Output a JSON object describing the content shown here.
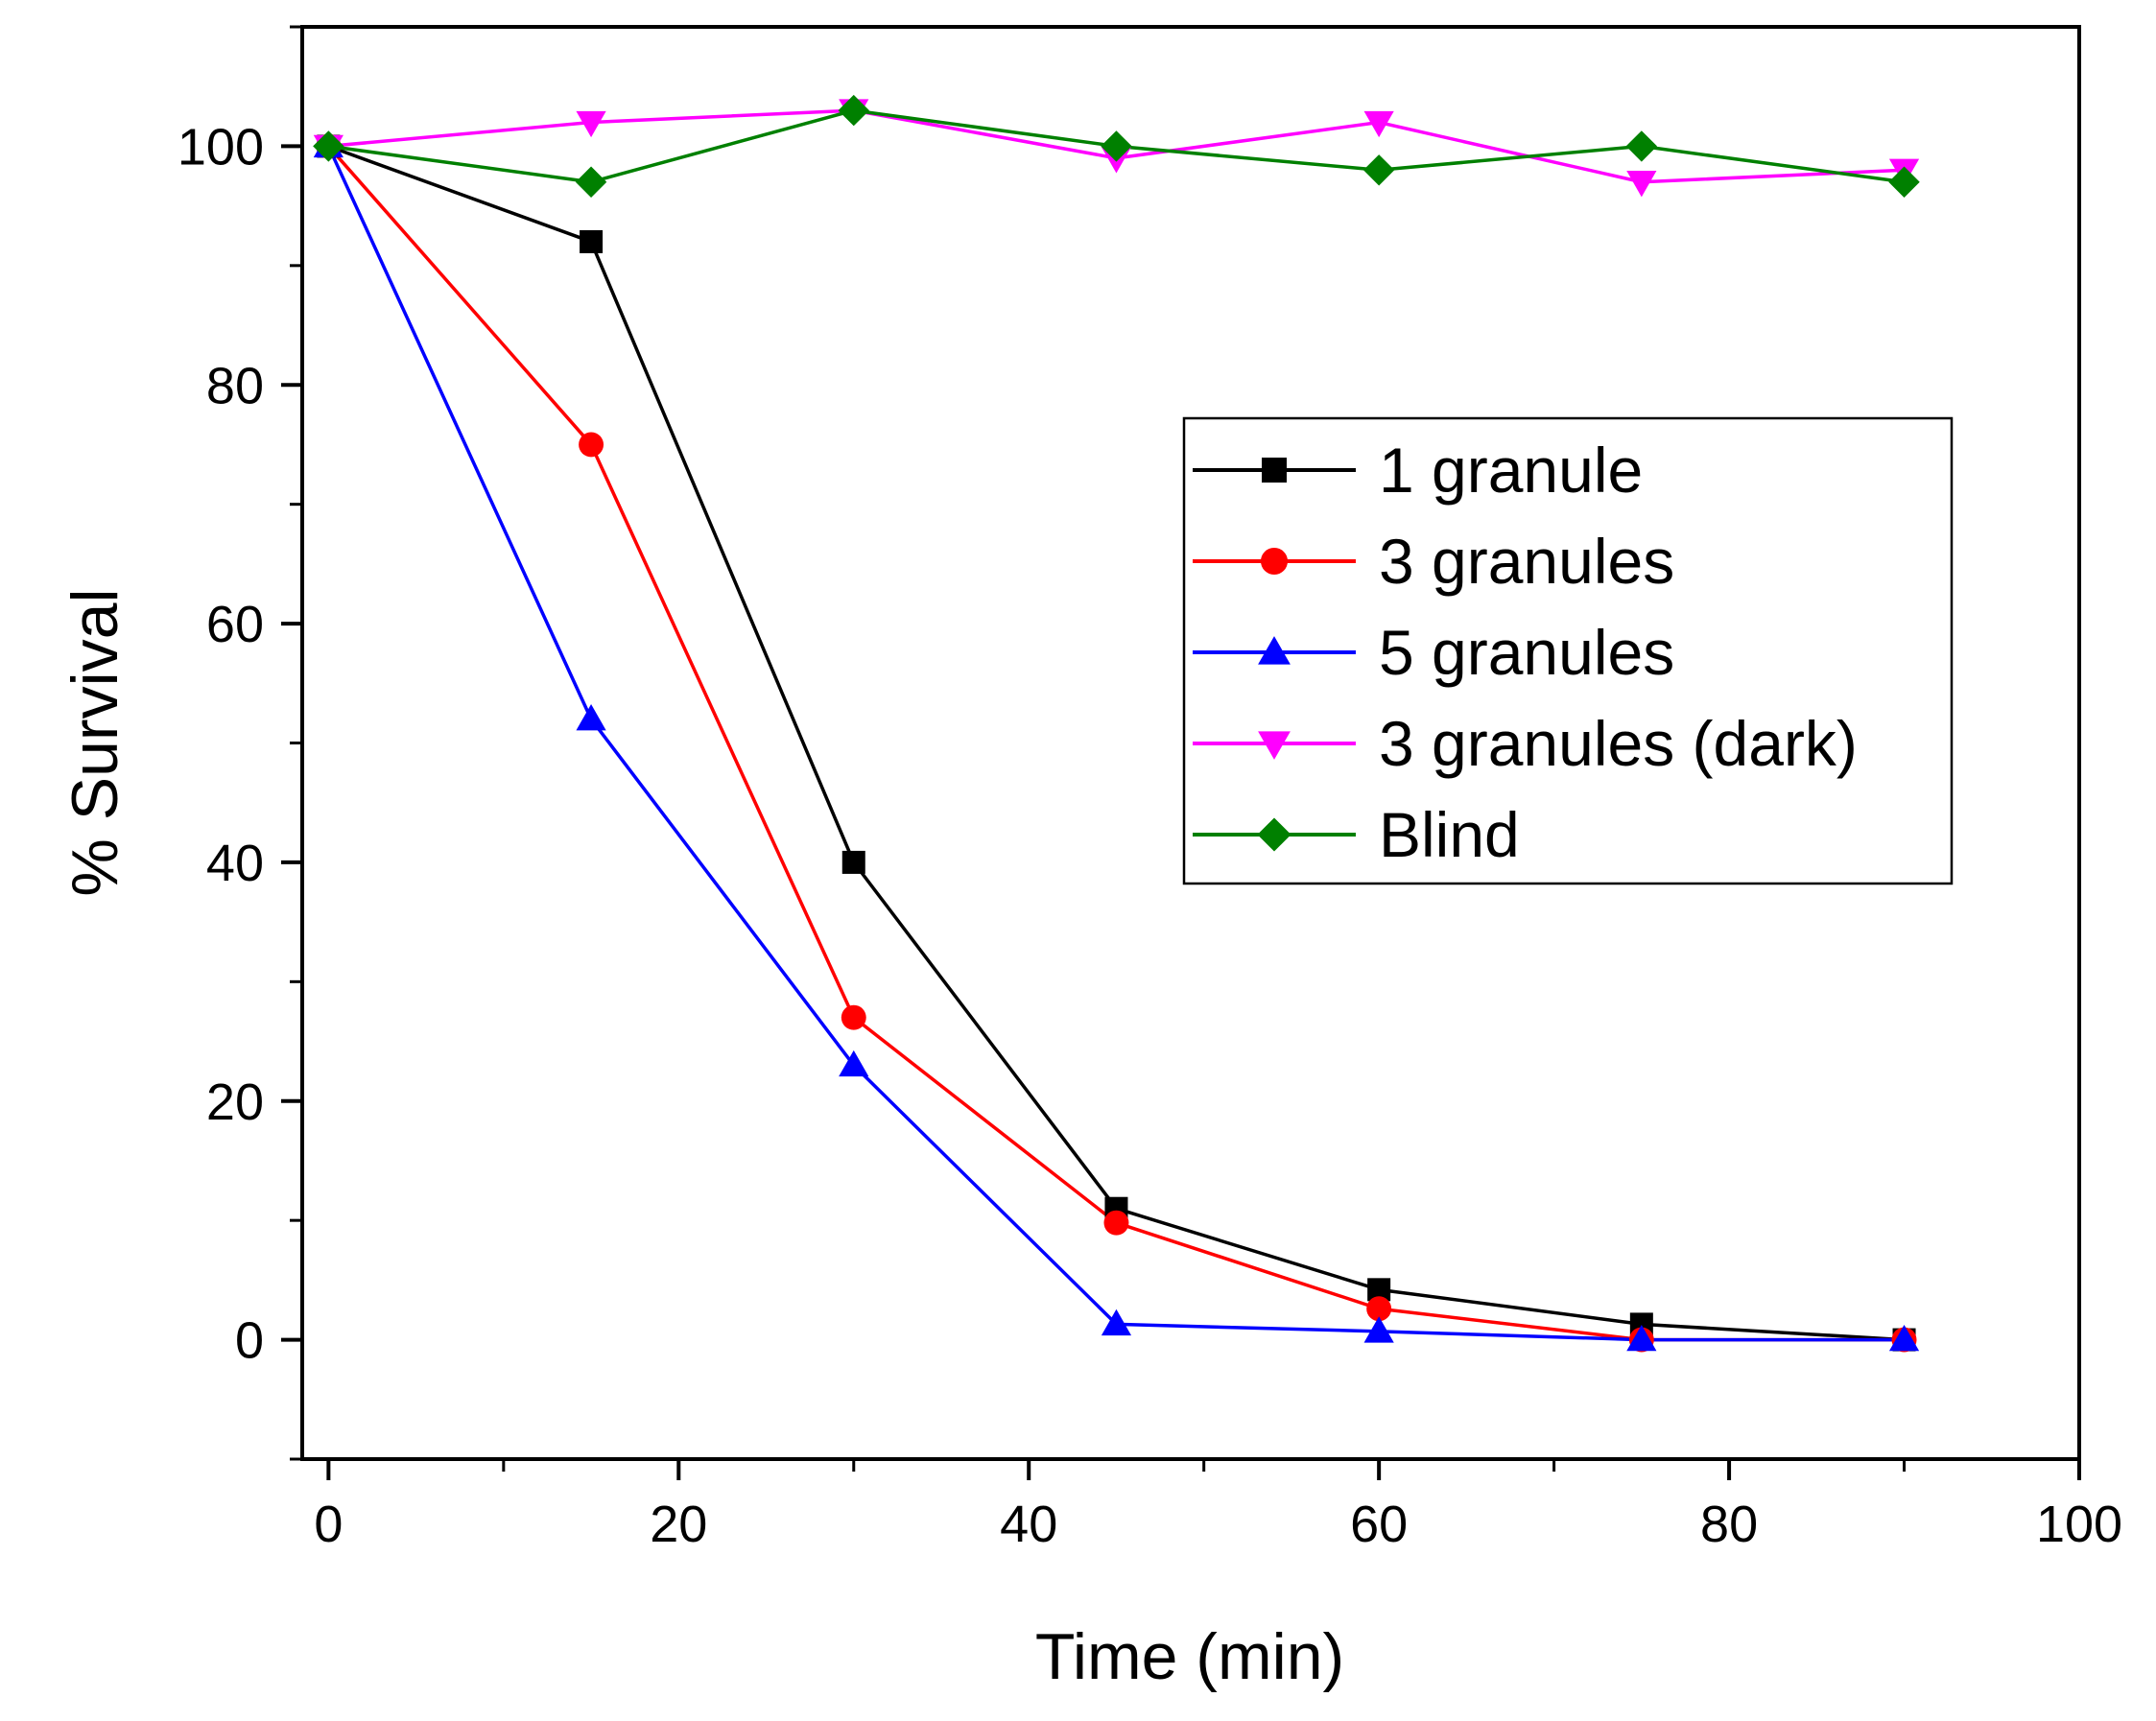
{
  "chart_data": {
    "type": "line",
    "title": "",
    "xlabel": "Time (min)",
    "ylabel": "% Survival",
    "xlim": [
      -1.5,
      100
    ],
    "ylim": [
      -10,
      110
    ],
    "x_ticks": [
      0,
      20,
      40,
      60,
      80,
      100
    ],
    "x_tick_labels": [
      "0",
      "20",
      "40",
      "60",
      "80",
      "100"
    ],
    "x_minor_ticks": [
      10,
      30,
      50,
      70,
      90
    ],
    "y_ticks": [
      0,
      20,
      40,
      60,
      80,
      100
    ],
    "y_tick_labels": [
      "0",
      "20",
      "40",
      "60",
      "80",
      "100"
    ],
    "y_minor_ticks": [
      -10,
      10,
      30,
      50,
      70,
      90,
      110
    ],
    "grid": false,
    "legend_position": "right, upper-middle",
    "x": [
      0,
      15,
      30,
      45,
      60,
      75,
      90
    ],
    "series": [
      {
        "name": "1 granule",
        "color": "#000000",
        "marker": "square",
        "values": [
          100,
          92,
          40,
          11,
          4.2,
          1.3,
          0
        ]
      },
      {
        "name": "3 granules",
        "color": "#ff0000",
        "marker": "circle",
        "values": [
          100,
          75,
          27,
          9.8,
          2.6,
          0,
          0
        ]
      },
      {
        "name": "5 granules",
        "color": "#0000ff",
        "marker": "triangle-up",
        "values": [
          100,
          52,
          23,
          1.3,
          0.7,
          0,
          0
        ]
      },
      {
        "name": "3 granules (dark)",
        "color": "#ff00ff",
        "marker": "triangle-down",
        "values": [
          100,
          102,
          103,
          99,
          102,
          97,
          98
        ]
      },
      {
        "name": "Blind",
        "color": "#008000",
        "marker": "diamond",
        "values": [
          100,
          97,
          103,
          100,
          98,
          100,
          97
        ]
      }
    ]
  }
}
